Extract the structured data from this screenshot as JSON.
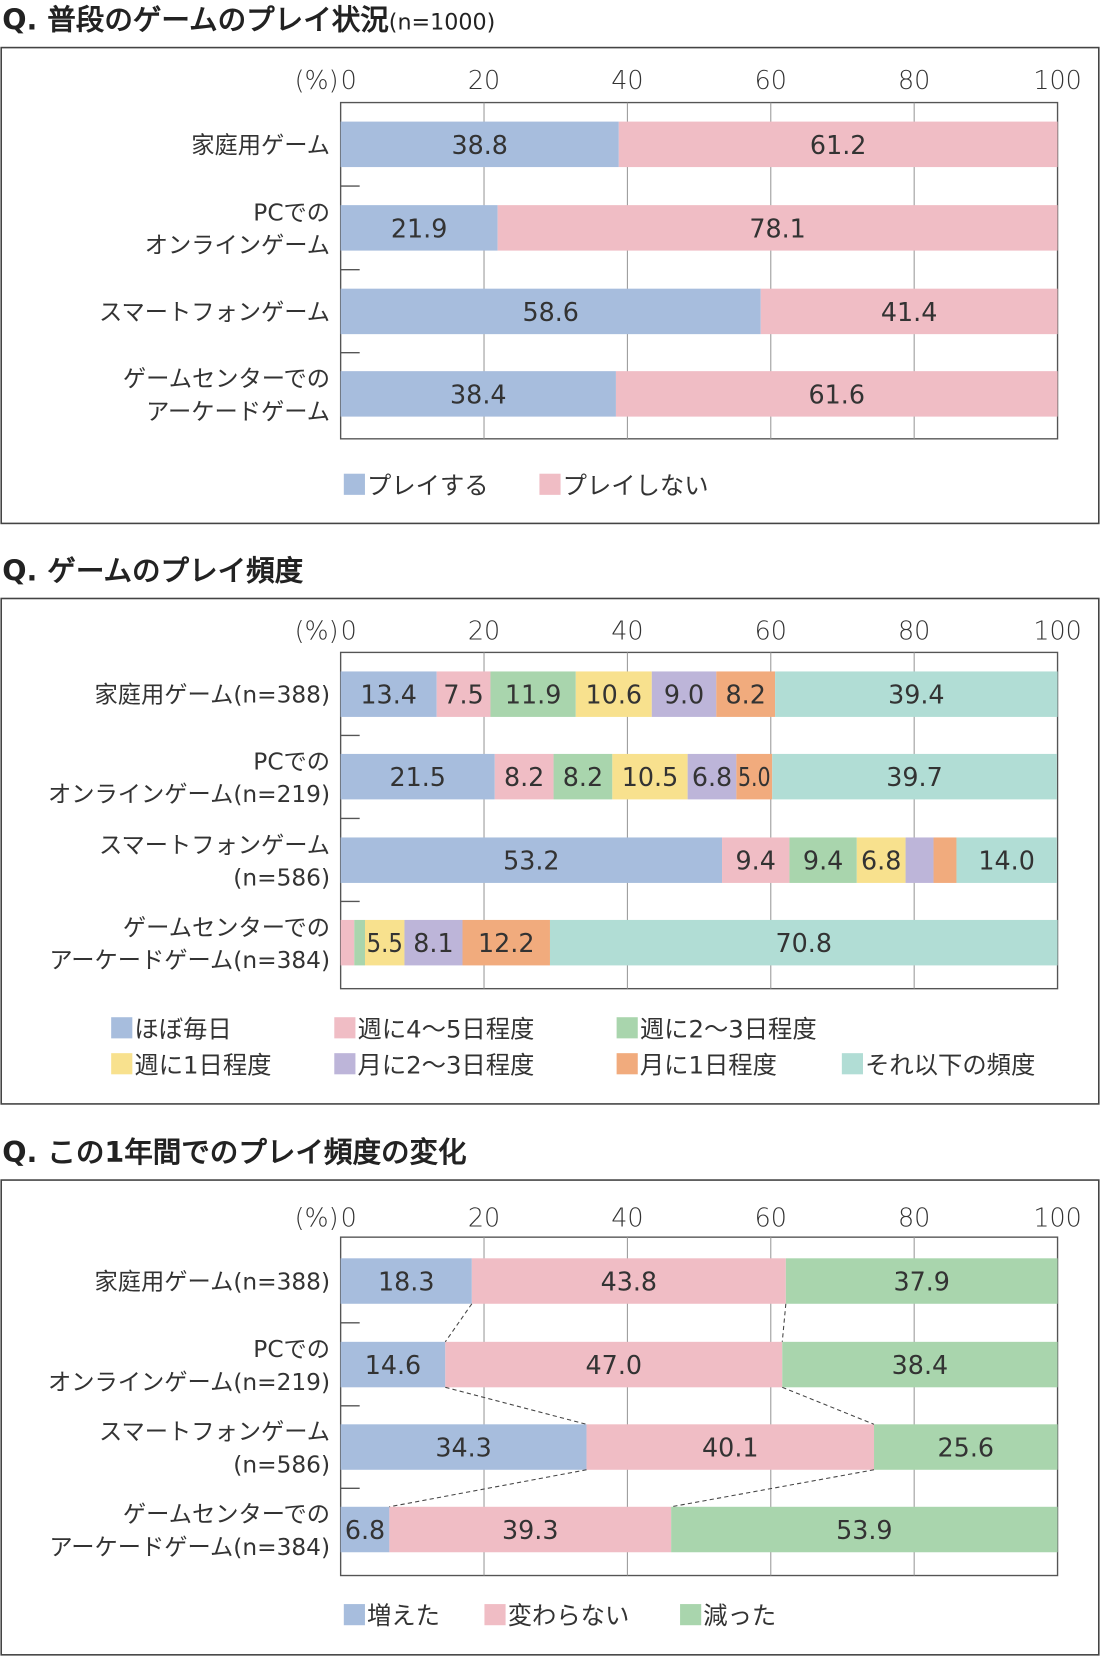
{
  "colors": {
    "blue": "#a7bddd",
    "pink": "#f0bdc5",
    "green": "#a9d5ad",
    "yellow": "#f8e18e",
    "purple": "#bdb5d9",
    "orange": "#f1ab7d",
    "teal": "#b1ddd5"
  },
  "chart_data": [
    {
      "type": "bar",
      "orientation": "horizontal-stacked",
      "title": "Q. 普段のゲームのプレイ状況",
      "subtitle": "(n=1000)",
      "unit_label": "(%)",
      "xlim": [
        0,
        100
      ],
      "ticks": [
        "0",
        "20",
        "40",
        "60",
        "80",
        "100"
      ],
      "grid": true,
      "categories": [
        [
          "家庭用ゲーム"
        ],
        [
          "PCでの",
          "オンラインゲーム"
        ],
        [
          "スマートフォンゲーム"
        ],
        [
          "ゲームセンターでの",
          "アーケードゲーム"
        ]
      ],
      "series": [
        {
          "name": "プレイする",
          "color": "blue",
          "values": [
            38.8,
            21.9,
            58.6,
            38.4
          ],
          "labels": [
            "38.8",
            "21.9",
            "58.6",
            "38.4"
          ]
        },
        {
          "name": "プレイしない",
          "color": "pink",
          "values": [
            61.2,
            78.1,
            41.4,
            61.6
          ],
          "labels": [
            "61.2",
            "78.1",
            "41.4",
            "61.6"
          ]
        }
      ],
      "legend": "bottom",
      "connectors": false
    },
    {
      "type": "bar",
      "orientation": "horizontal-stacked",
      "title": "Q. ゲームのプレイ頻度",
      "subtitle": "",
      "unit_label": "(%)",
      "xlim": [
        0,
        100
      ],
      "ticks": [
        "0",
        "20",
        "40",
        "60",
        "80",
        "100"
      ],
      "grid": true,
      "categories": [
        [
          "家庭用ゲーム(n=388)"
        ],
        [
          "PCでの",
          "オンラインゲーム(n=219)"
        ],
        [
          "スマートフォンゲーム",
          "(n=586)"
        ],
        [
          "ゲームセンターでの",
          "アーケードゲーム(n=384)"
        ]
      ],
      "series": [
        {
          "name": "ほぼ毎日",
          "color": "blue",
          "values": [
            13.4,
            21.5,
            53.2,
            0
          ],
          "labels": [
            "13.4",
            "21.5",
            "53.2",
            ""
          ]
        },
        {
          "name": "週に4〜5日程度",
          "color": "pink",
          "values": [
            7.5,
            8.2,
            9.4,
            1.9
          ],
          "labels": [
            "7.5",
            "8.2",
            "9.4",
            ""
          ]
        },
        {
          "name": "週に2〜3日程度",
          "color": "green",
          "values": [
            11.9,
            8.2,
            9.4,
            1.5
          ],
          "labels": [
            "11.9",
            "8.2",
            "9.4",
            ""
          ]
        },
        {
          "name": "週に1日程度",
          "color": "yellow",
          "values": [
            10.6,
            10.5,
            6.8,
            5.5
          ],
          "labels": [
            "10.6",
            "10.5",
            "6.8",
            "5.5"
          ]
        },
        {
          "name": "月に2〜3日程度",
          "color": "purple",
          "values": [
            9.0,
            6.8,
            3.9,
            8.1
          ],
          "labels": [
            "9.0",
            "6.8",
            "",
            "8.1"
          ]
        },
        {
          "name": "月に1日程度",
          "color": "orange",
          "values": [
            8.2,
            5.0,
            3.2,
            12.2
          ],
          "labels": [
            "8.2",
            "5.0",
            "",
            "12.2"
          ]
        },
        {
          "name": "それ以下の頻度",
          "color": "teal",
          "values": [
            39.4,
            39.7,
            14.0,
            70.8
          ],
          "labels": [
            "39.4",
            "39.7",
            "14.0",
            "70.8"
          ]
        }
      ],
      "legend": "bottom",
      "connectors": false
    },
    {
      "type": "bar",
      "orientation": "horizontal-stacked",
      "title": "Q. この1年間でのプレイ頻度の変化",
      "subtitle": "",
      "unit_label": "(%)",
      "xlim": [
        0,
        100
      ],
      "ticks": [
        "0",
        "20",
        "40",
        "60",
        "80",
        "100"
      ],
      "grid": true,
      "categories": [
        [
          "家庭用ゲーム(n=388)"
        ],
        [
          "PCでの",
          "オンラインゲーム(n=219)"
        ],
        [
          "スマートフォンゲーム",
          "(n=586)"
        ],
        [
          "ゲームセンターでの",
          "アーケードゲーム(n=384)"
        ]
      ],
      "series": [
        {
          "name": "増えた",
          "color": "blue",
          "values": [
            18.3,
            14.6,
            34.3,
            6.8
          ],
          "labels": [
            "18.3",
            "14.6",
            "34.3",
            "6.8"
          ]
        },
        {
          "name": "変わらない",
          "color": "pink",
          "values": [
            43.8,
            47.0,
            40.1,
            39.3
          ],
          "labels": [
            "43.8",
            "47.0",
            "40.1",
            "39.3"
          ]
        },
        {
          "name": "減った",
          "color": "green",
          "values": [
            37.9,
            38.4,
            25.6,
            53.9
          ],
          "labels": [
            "37.9",
            "38.4",
            "25.6",
            "53.9"
          ]
        }
      ],
      "legend": "bottom",
      "connectors": true
    }
  ]
}
